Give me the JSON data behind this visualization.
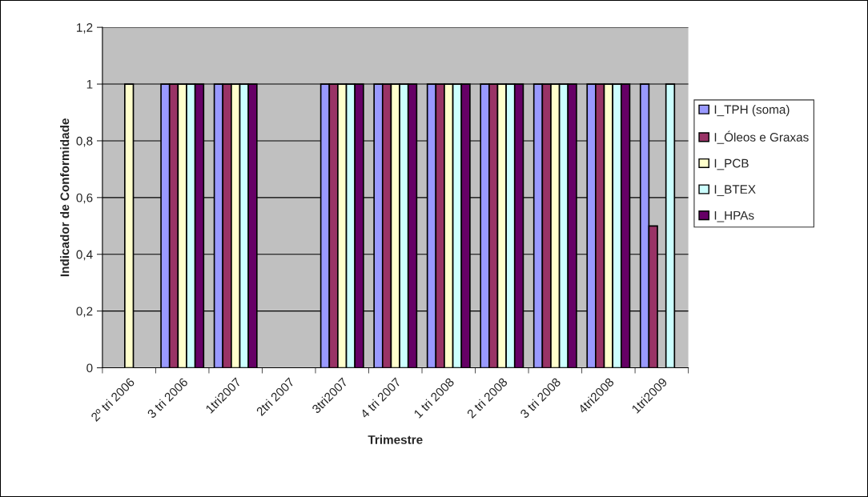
{
  "chart_data": {
    "type": "bar",
    "xlabel": "Trimestre",
    "ylabel": "Indicador de Conformidade",
    "categories": [
      "2º tri 2006",
      "3 tri 2006",
      "1tri2007",
      "2tri 2007",
      "3tri2007",
      "4 tri 2007",
      "1 tri 2008",
      "2 tri 2008",
      "3 tri 2008",
      "4tri2008",
      "1tri2009"
    ],
    "series": [
      {
        "name": "I_TPH (soma)",
        "color": "#9999ff",
        "values": [
          null,
          1,
          1,
          null,
          1,
          1,
          1,
          1,
          1,
          1,
          1
        ]
      },
      {
        "name": "I_Óleos e Graxas",
        "color": "#993366",
        "values": [
          null,
          1,
          1,
          null,
          1,
          1,
          1,
          1,
          1,
          1,
          0.5
        ]
      },
      {
        "name": "I_PCB",
        "color": "#ffffcc",
        "values": [
          1,
          1,
          1,
          null,
          1,
          1,
          1,
          1,
          1,
          1,
          null
        ]
      },
      {
        "name": "I_BTEX",
        "color": "#ccffff",
        "values": [
          null,
          1,
          1,
          null,
          1,
          1,
          1,
          1,
          1,
          1,
          1
        ]
      },
      {
        "name": "I_HPAs",
        "color": "#660066",
        "values": [
          null,
          1,
          1,
          null,
          1,
          1,
          1,
          1,
          1,
          1,
          null
        ]
      }
    ],
    "ylim": [
      0,
      1.2
    ],
    "yticks": [
      0,
      {
        "value": 0.2,
        "label": "0,2"
      },
      {
        "value": 0.4,
        "label": "0,4"
      },
      {
        "value": 0.6,
        "label": "0,6"
      },
      {
        "value": 0.8,
        "label": "0,8"
      },
      1,
      {
        "value": 1.2,
        "label": "1,2"
      }
    ],
    "grid": "y",
    "legend": "right"
  }
}
